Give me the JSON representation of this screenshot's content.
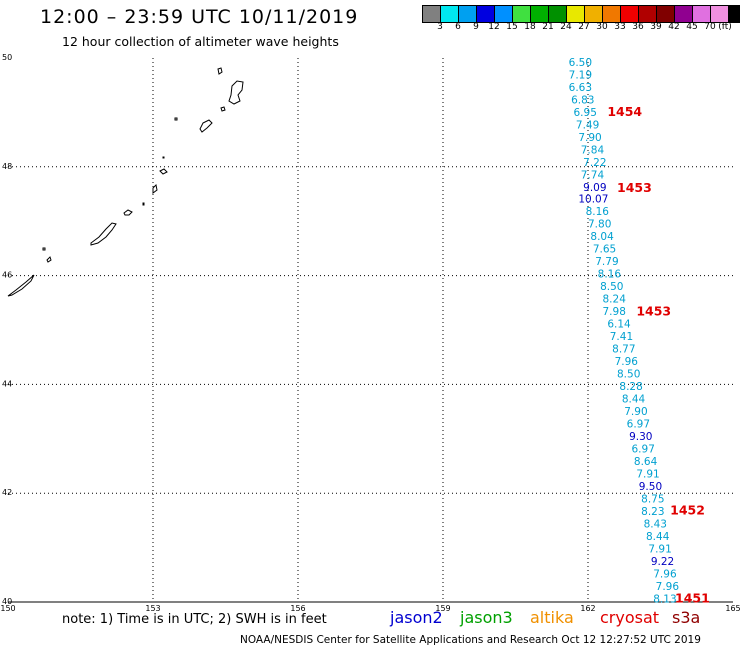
{
  "header": {
    "title": "12:00 – 23:59 UTC 10/11/2019",
    "subtitle": "12 hour collection of altimeter wave heights"
  },
  "color_scale": {
    "colors": [
      "#808080",
      "#00e8f0",
      "#00a0f0",
      "#0000e0",
      "#0090ff",
      "#40e040",
      "#00b000",
      "#009000",
      "#e8e800",
      "#f0b000",
      "#f07800",
      "#f00000",
      "#b00000",
      "#800000",
      "#900090",
      "#e070e0",
      "#f090e0",
      "#000000"
    ],
    "labels": [
      "3",
      "6",
      "9",
      "12",
      "15",
      "18",
      "21",
      "24",
      "27",
      "30",
      "33",
      "36",
      "39",
      "42",
      "45",
      "70",
      "(ft)"
    ]
  },
  "map": {
    "lat_range": [
      40,
      50
    ],
    "lon_range": [
      150,
      165
    ],
    "lat_labels": [
      "50",
      "48",
      "46",
      "44",
      "42",
      "40"
    ],
    "lon_labels": [
      "150",
      "153",
      "156",
      "159",
      "162",
      "165"
    ],
    "wave_track": [
      {
        "value": "6.50",
        "lat": 49.93,
        "lon": 161.6,
        "color": "#00a0d0"
      },
      {
        "value": "7.19",
        "lat": 49.7,
        "lon": 161.6,
        "color": "#00a0d0"
      },
      {
        "value": "6.63",
        "lat": 49.47,
        "lon": 161.6,
        "color": "#00a0d0"
      },
      {
        "value": "6.83",
        "lat": 49.24,
        "lon": 161.65,
        "color": "#00a0d0"
      },
      {
        "value": "6.95",
        "lat": 49.01,
        "lon": 161.7,
        "color": "#00a0d0"
      },
      {
        "value": "7.49",
        "lat": 48.78,
        "lon": 161.75,
        "color": "#00a0d0"
      },
      {
        "value": "7.90",
        "lat": 48.55,
        "lon": 161.8,
        "color": "#00a0d0"
      },
      {
        "value": "7.84",
        "lat": 48.32,
        "lon": 161.85,
        "color": "#00a0d0"
      },
      {
        "value": "7.22",
        "lat": 48.09,
        "lon": 161.9,
        "color": "#00a0d0"
      },
      {
        "value": "7.74",
        "lat": 47.86,
        "lon": 161.85,
        "color": "#00a0d0"
      },
      {
        "value": "9.09",
        "lat": 47.63,
        "lon": 161.9,
        "color": "#0000c0"
      },
      {
        "value": "10.07",
        "lat": 47.42,
        "lon": 161.8,
        "color": "#0000c0"
      },
      {
        "value": "8.16",
        "lat": 47.19,
        "lon": 161.95,
        "color": "#00a0d0"
      },
      {
        "value": "7.80",
        "lat": 46.96,
        "lon": 162.0,
        "color": "#00a0d0"
      },
      {
        "value": "8.04",
        "lat": 46.73,
        "lon": 162.05,
        "color": "#00a0d0"
      },
      {
        "value": "7.65",
        "lat": 46.5,
        "lon": 162.1,
        "color": "#00a0d0"
      },
      {
        "value": "7.79",
        "lat": 46.27,
        "lon": 162.15,
        "color": "#00a0d0"
      },
      {
        "value": "8.16",
        "lat": 46.04,
        "lon": 162.2,
        "color": "#00a0d0"
      },
      {
        "value": "8.50",
        "lat": 45.81,
        "lon": 162.25,
        "color": "#00a0d0"
      },
      {
        "value": "8.24",
        "lat": 45.58,
        "lon": 162.3,
        "color": "#00a0d0"
      },
      {
        "value": "7.98",
        "lat": 45.35,
        "lon": 162.3,
        "color": "#00a0d0"
      },
      {
        "value": "6.14",
        "lat": 45.12,
        "lon": 162.4,
        "color": "#00a0d0"
      },
      {
        "value": "7.41",
        "lat": 44.89,
        "lon": 162.45,
        "color": "#00a0d0"
      },
      {
        "value": "8.77",
        "lat": 44.66,
        "lon": 162.5,
        "color": "#00a0d0"
      },
      {
        "value": "7.96",
        "lat": 44.43,
        "lon": 162.55,
        "color": "#00a0d0"
      },
      {
        "value": "8.50",
        "lat": 44.2,
        "lon": 162.6,
        "color": "#00a0d0"
      },
      {
        "value": "8.28",
        "lat": 43.97,
        "lon": 162.65,
        "color": "#00a0d0"
      },
      {
        "value": "8.44",
        "lat": 43.74,
        "lon": 162.7,
        "color": "#00a0d0"
      },
      {
        "value": "7.90",
        "lat": 43.51,
        "lon": 162.75,
        "color": "#00a0d0"
      },
      {
        "value": "6.97",
        "lat": 43.28,
        "lon": 162.8,
        "color": "#00a0d0"
      },
      {
        "value": "9.30",
        "lat": 43.05,
        "lon": 162.85,
        "color": "#0000c0"
      },
      {
        "value": "6.97",
        "lat": 42.82,
        "lon": 162.9,
        "color": "#00a0d0"
      },
      {
        "value": "8.64",
        "lat": 42.59,
        "lon": 162.95,
        "color": "#00a0d0"
      },
      {
        "value": "7.91",
        "lat": 42.36,
        "lon": 163.0,
        "color": "#00a0d0"
      },
      {
        "value": "9.50",
        "lat": 42.13,
        "lon": 163.05,
        "color": "#0000c0"
      },
      {
        "value": "8.75",
        "lat": 41.9,
        "lon": 163.1,
        "color": "#00a0d0"
      },
      {
        "value": "8.23",
        "lat": 41.67,
        "lon": 163.1,
        "color": "#00a0d0"
      },
      {
        "value": "8.43",
        "lat": 41.44,
        "lon": 163.15,
        "color": "#00a0d0"
      },
      {
        "value": "8.44",
        "lat": 41.21,
        "lon": 163.2,
        "color": "#00a0d0"
      },
      {
        "value": "7.91",
        "lat": 40.98,
        "lon": 163.25,
        "color": "#00a0d0"
      },
      {
        "value": "9.22",
        "lat": 40.75,
        "lon": 163.3,
        "color": "#0000c0"
      },
      {
        "value": "7.96",
        "lat": 40.52,
        "lon": 163.35,
        "color": "#00a0d0"
      },
      {
        "value": "7.96",
        "lat": 40.29,
        "lon": 163.4,
        "color": "#00a0d0"
      },
      {
        "value": "8.13",
        "lat": 40.06,
        "lon": 163.35,
        "color": "#00a0d0"
      }
    ],
    "time_labels": [
      {
        "value": "1454",
        "lat": 49.03,
        "lon": 162.4
      },
      {
        "value": "1453",
        "lat": 47.63,
        "lon": 162.6
      },
      {
        "value": "1453",
        "lat": 45.36,
        "lon": 163.0
      },
      {
        "value": "1452",
        "lat": 41.7,
        "lon": 163.7
      },
      {
        "value": "1451",
        "lat": 40.08,
        "lon": 163.8
      }
    ]
  },
  "note": "note: 1) Time is in UTC; 2) SWH is in feet",
  "missions": [
    {
      "name": "jason2",
      "color": "#0000d0"
    },
    {
      "name": "jason3",
      "color": "#00a000"
    },
    {
      "name": "altika",
      "color": "#f09000"
    },
    {
      "name": "cryosat",
      "color": "#e00000"
    },
    {
      "name": "s3a",
      "color": "#900000"
    }
  ],
  "footer": "NOAA/NESDIS Center for Satellite Applications and Research    Oct 12 12:27:52 UTC 2019"
}
